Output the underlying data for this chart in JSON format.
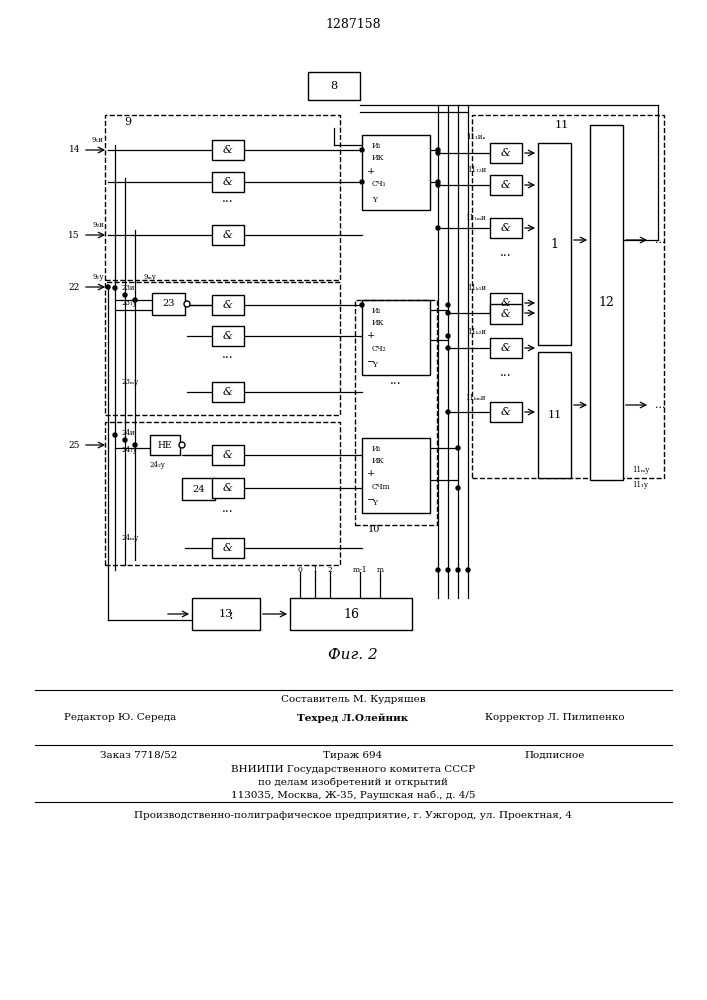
{
  "title": "1287158",
  "fig_label": "Фиг. 2",
  "bg_color": "#ffffff",
  "figsize": [
    7.07,
    10.0
  ],
  "dpi": 100,
  "footer_lines": [
    "Составитель М. Кудряшев",
    "Редактор Ю. Середа",
    "Техред Л.Олейник",
    "Корректор Л. Пилипенко",
    "Заказ 7718/52",
    "Тираж 694",
    "Подписное",
    "ВНИИПИ Государственного комитета СССР",
    "по делам изобретений и открытий",
    "113035, Москва, Ж-35, Раушская наб., д. 4/5",
    "Производственно-полиграфическое предприятие, г. Ужгород, ул. Проектная, 4"
  ]
}
